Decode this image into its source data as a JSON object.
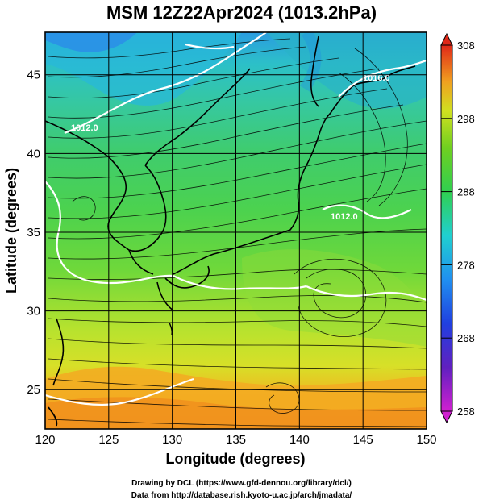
{
  "title": "MSM 12Z22Apr2024 (1013.2hPa)",
  "x_axis": {
    "label": "Longitude (degrees)",
    "ticks": [
      "120",
      "125",
      "130",
      "135",
      "140",
      "145",
      "150"
    ]
  },
  "y_axis": {
    "label": "Latitude  (degrees)",
    "ticks": [
      "25",
      "30",
      "35",
      "40",
      "45"
    ]
  },
  "colorbar": {
    "ticks": [
      "258",
      "268",
      "278",
      "288",
      "298",
      "308"
    ]
  },
  "contour_labels": [
    "1012.0",
    "1012.0",
    "1016.0"
  ],
  "credits": {
    "line1": "Drawing by DCL (https://www.gfd-dennou.org/library/dcl/)",
    "line2": "Data from http://database.rish.kyoto-u.ac.jp/arch/jmadata/"
  },
  "colors": {
    "warm": "#f5a020",
    "mid": "#5ed84a",
    "cool": "#1ec8d8",
    "cold": "#3060e8"
  }
}
